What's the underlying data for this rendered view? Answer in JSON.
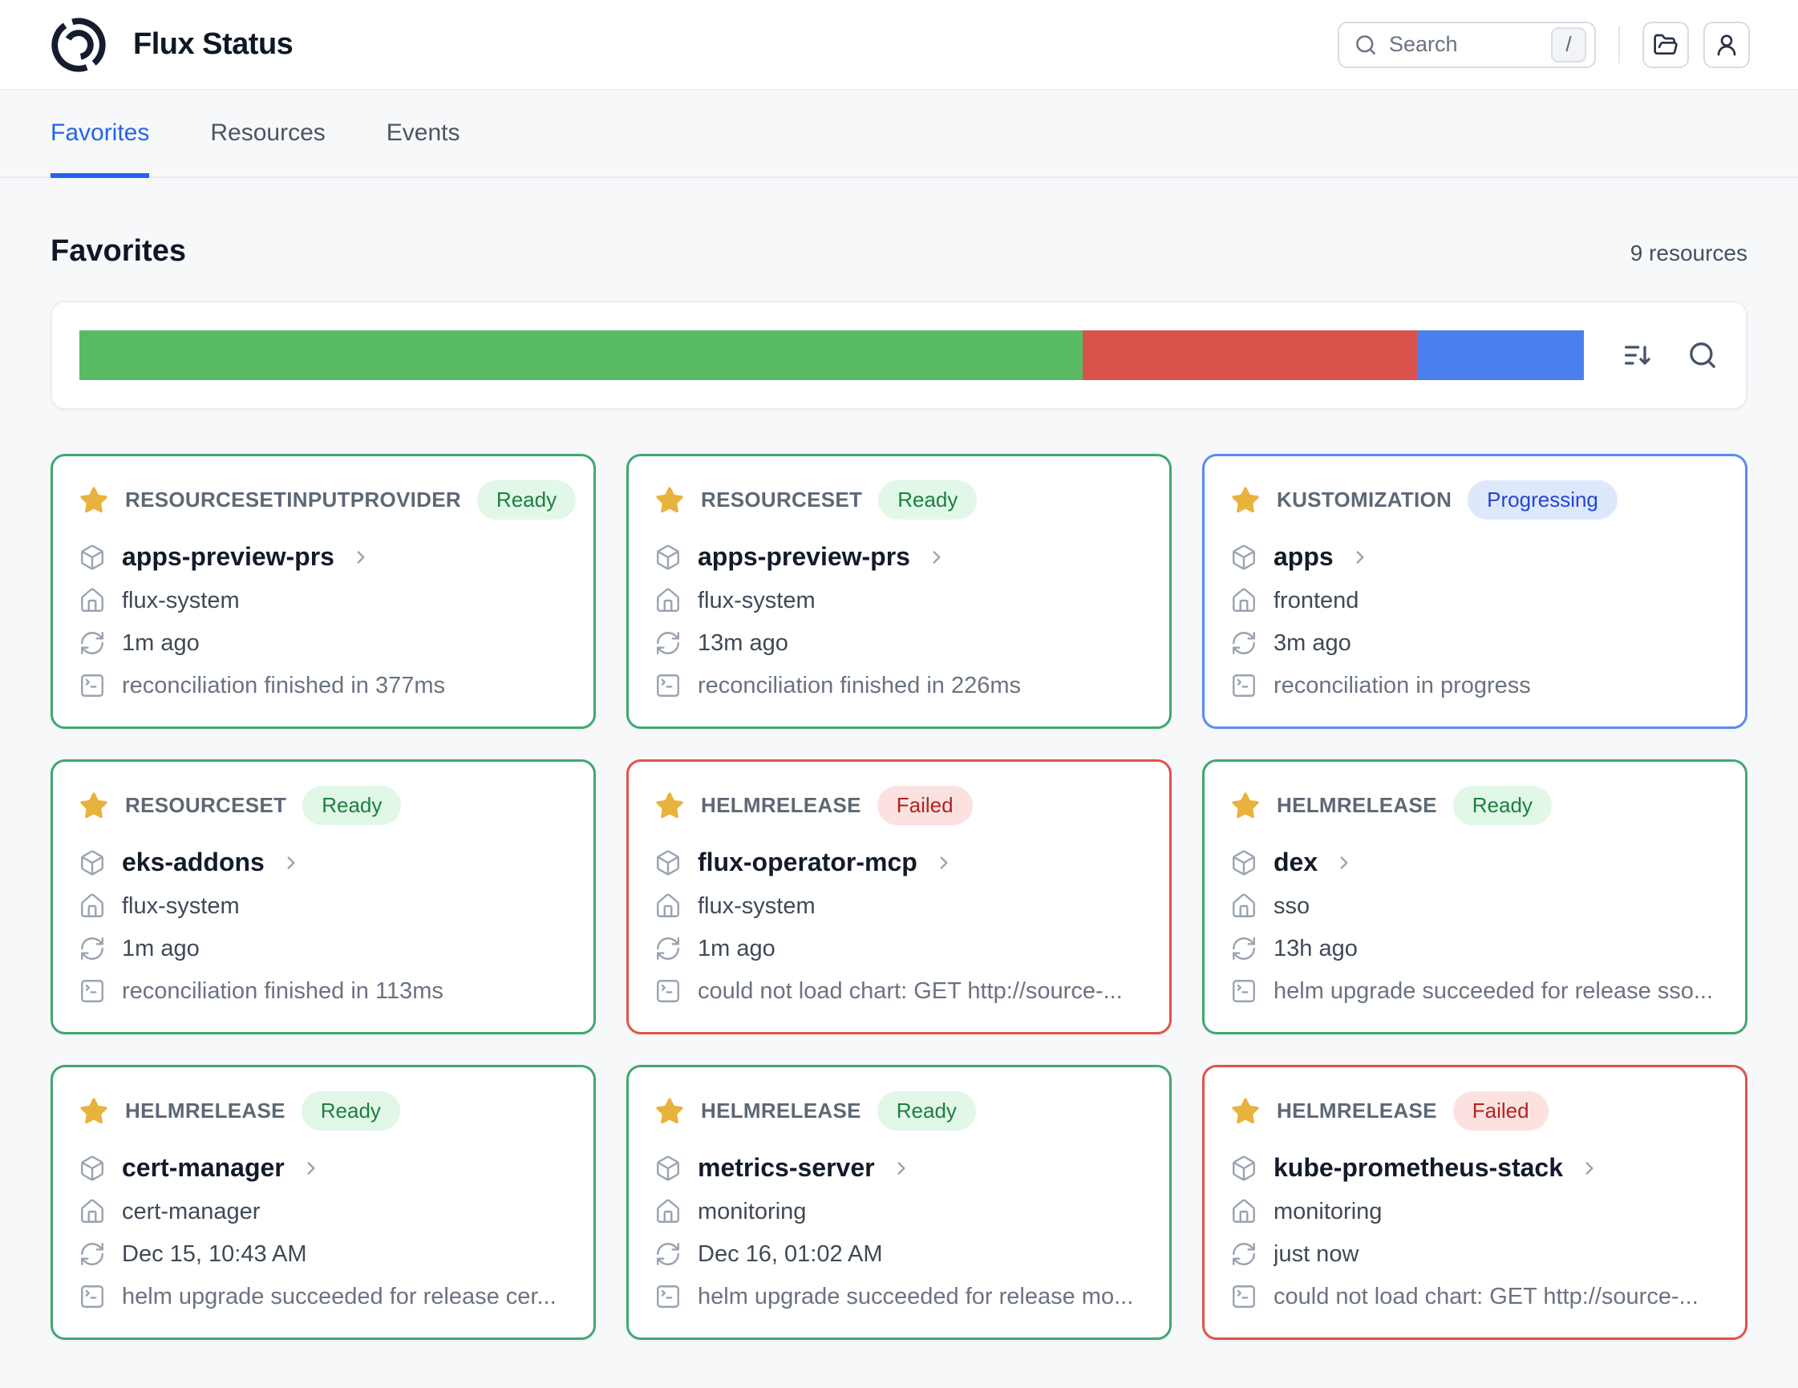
{
  "header": {
    "title": "Flux Status",
    "search": {
      "placeholder": "Search",
      "shortcut_key": "/"
    }
  },
  "icons": [
    "flux-logo",
    "search",
    "slash-key",
    "folder-open",
    "user",
    "sort-descending",
    "star",
    "package",
    "chevron-right",
    "home",
    "sync",
    "terminal"
  ],
  "tabs": [
    {
      "label": "Favorites",
      "active": true
    },
    {
      "label": "Resources",
      "active": false
    },
    {
      "label": "Events",
      "active": false
    }
  ],
  "section": {
    "title": "Favorites",
    "count_label": "9 resources"
  },
  "status_bar": {
    "segments": [
      {
        "status": "ready",
        "count": 6,
        "color": "#58ba63"
      },
      {
        "status": "failed",
        "count": 2,
        "color": "#d9534d"
      },
      {
        "status": "progressing",
        "count": 1,
        "color": "#4c7fee"
      }
    ]
  },
  "status_styles": {
    "ready": {
      "label": "Ready",
      "border": "#3fa871",
      "badge_bg": "#e1f7e7",
      "badge_text": "#1c7f40"
    },
    "failed": {
      "label": "Failed",
      "border": "#e2524b",
      "badge_bg": "#fbe2e1",
      "badge_text": "#b2241c"
    },
    "progressing": {
      "label": "Progressing",
      "border": "#5b8bf0",
      "badge_bg": "#dee8fc",
      "badge_text": "#2346cf"
    }
  },
  "cards": [
    {
      "kind": "RESOURCESETINPUTPROVIDER",
      "status_key": "ready",
      "status_label": "Ready",
      "name": "apps-preview-prs",
      "namespace": "flux-system",
      "time": "1m ago",
      "message": "reconciliation finished in 377ms"
    },
    {
      "kind": "RESOURCESET",
      "status_key": "ready",
      "status_label": "Ready",
      "name": "apps-preview-prs",
      "namespace": "flux-system",
      "time": "13m ago",
      "message": "reconciliation finished in 226ms"
    },
    {
      "kind": "KUSTOMIZATION",
      "status_key": "progressing",
      "status_label": "Progressing",
      "name": "apps",
      "namespace": "frontend",
      "time": "3m ago",
      "message": "reconciliation in progress"
    },
    {
      "kind": "RESOURCESET",
      "status_key": "ready",
      "status_label": "Ready",
      "name": "eks-addons",
      "namespace": "flux-system",
      "time": "1m ago",
      "message": "reconciliation finished in 113ms"
    },
    {
      "kind": "HELMRELEASE",
      "status_key": "failed",
      "status_label": "Failed",
      "name": "flux-operator-mcp",
      "namespace": "flux-system",
      "time": "1m ago",
      "message": "could not load chart: GET http://source-..."
    },
    {
      "kind": "HELMRELEASE",
      "status_key": "ready",
      "status_label": "Ready",
      "name": "dex",
      "namespace": "sso",
      "time": "13h ago",
      "message": "helm upgrade succeeded for release sso..."
    },
    {
      "kind": "HELMRELEASE",
      "status_key": "ready",
      "status_label": "Ready",
      "name": "cert-manager",
      "namespace": "cert-manager",
      "time": "Dec 15, 10:43 AM",
      "message": "helm upgrade succeeded for release cer..."
    },
    {
      "kind": "HELMRELEASE",
      "status_key": "ready",
      "status_label": "Ready",
      "name": "metrics-server",
      "namespace": "monitoring",
      "time": "Dec 16, 01:02 AM",
      "message": "helm upgrade succeeded for release mo..."
    },
    {
      "kind": "HELMRELEASE",
      "status_key": "failed",
      "status_label": "Failed",
      "name": "kube-prometheus-stack",
      "namespace": "monitoring",
      "time": "just now",
      "message": "could not load chart: GET http://source-..."
    }
  ]
}
